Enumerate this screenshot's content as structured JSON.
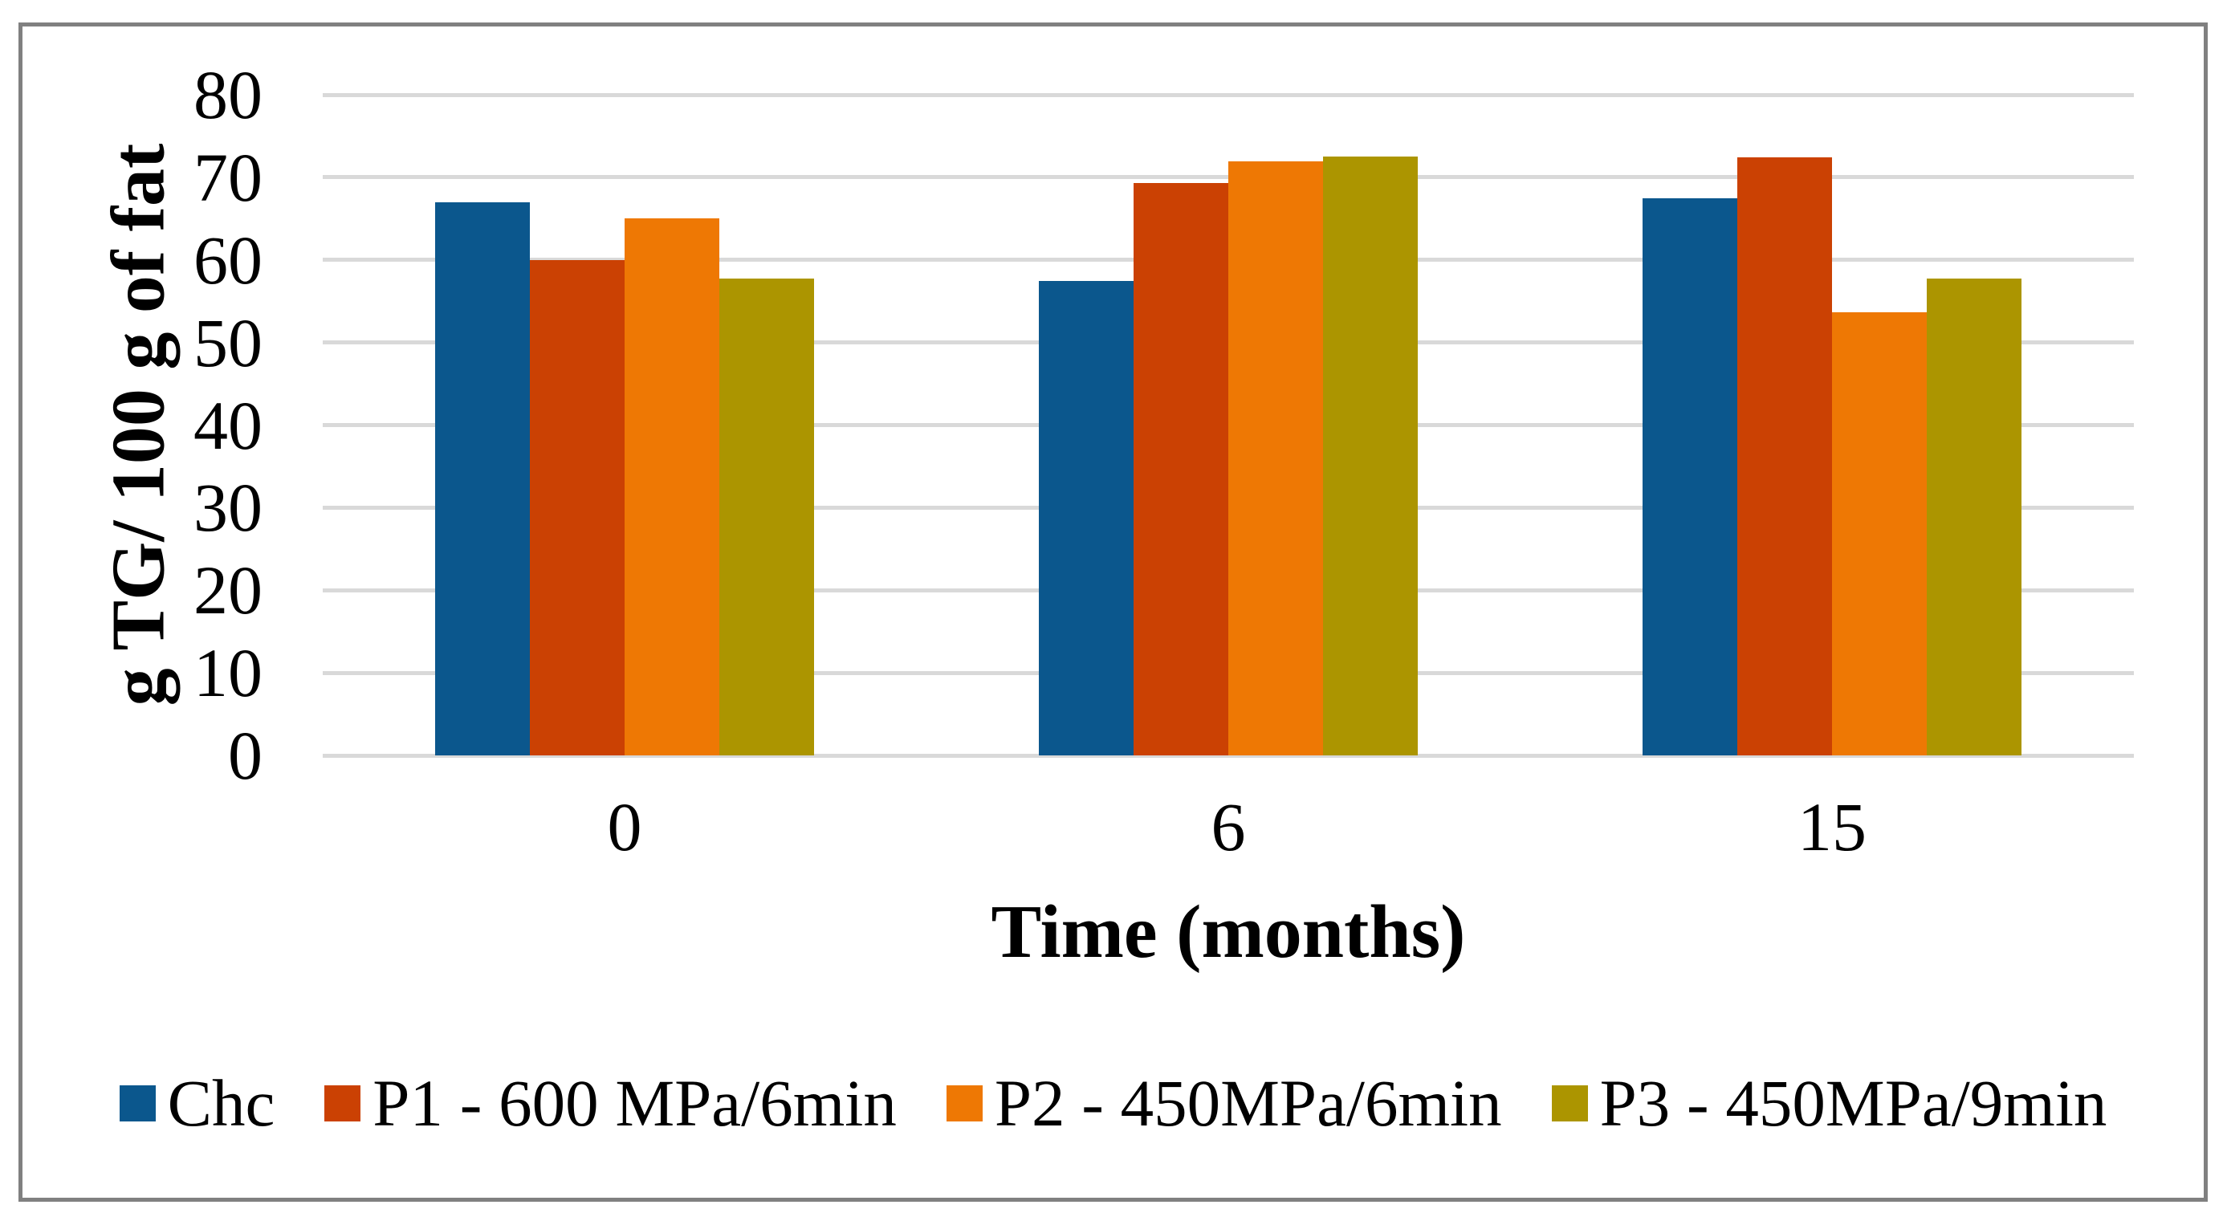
{
  "figure": {
    "background": "#FFFFFF",
    "frame_border_color": "#808080"
  },
  "chart_data": {
    "type": "bar",
    "title": "",
    "xlabel": "Time (months)",
    "ylabel": "g TG/ 100 g of fat",
    "categories": [
      "0",
      "6",
      "15"
    ],
    "series": [
      {
        "name": "Chc",
        "color": "#0B578D",
        "values": [
          67.0,
          57.4,
          67.5
        ]
      },
      {
        "name": "P1 - 600 MPa/6min",
        "color": "#CB4103",
        "values": [
          60.0,
          69.3,
          72.4
        ]
      },
      {
        "name": "P2 - 450MPa/6min",
        "color": "#EE7804",
        "values": [
          65.0,
          71.9,
          53.7
        ]
      },
      {
        "name": "P3 - 450MPa/9min",
        "color": "#AC9500",
        "values": [
          57.7,
          72.5,
          57.7
        ]
      }
    ],
    "ylim": [
      0,
      80
    ],
    "yticks": [
      0,
      10,
      20,
      30,
      40,
      50,
      60,
      70,
      80
    ],
    "grid": true,
    "gridline_color": "#D9D9D9",
    "legend_position": "bottom",
    "text_color": "#000000"
  }
}
